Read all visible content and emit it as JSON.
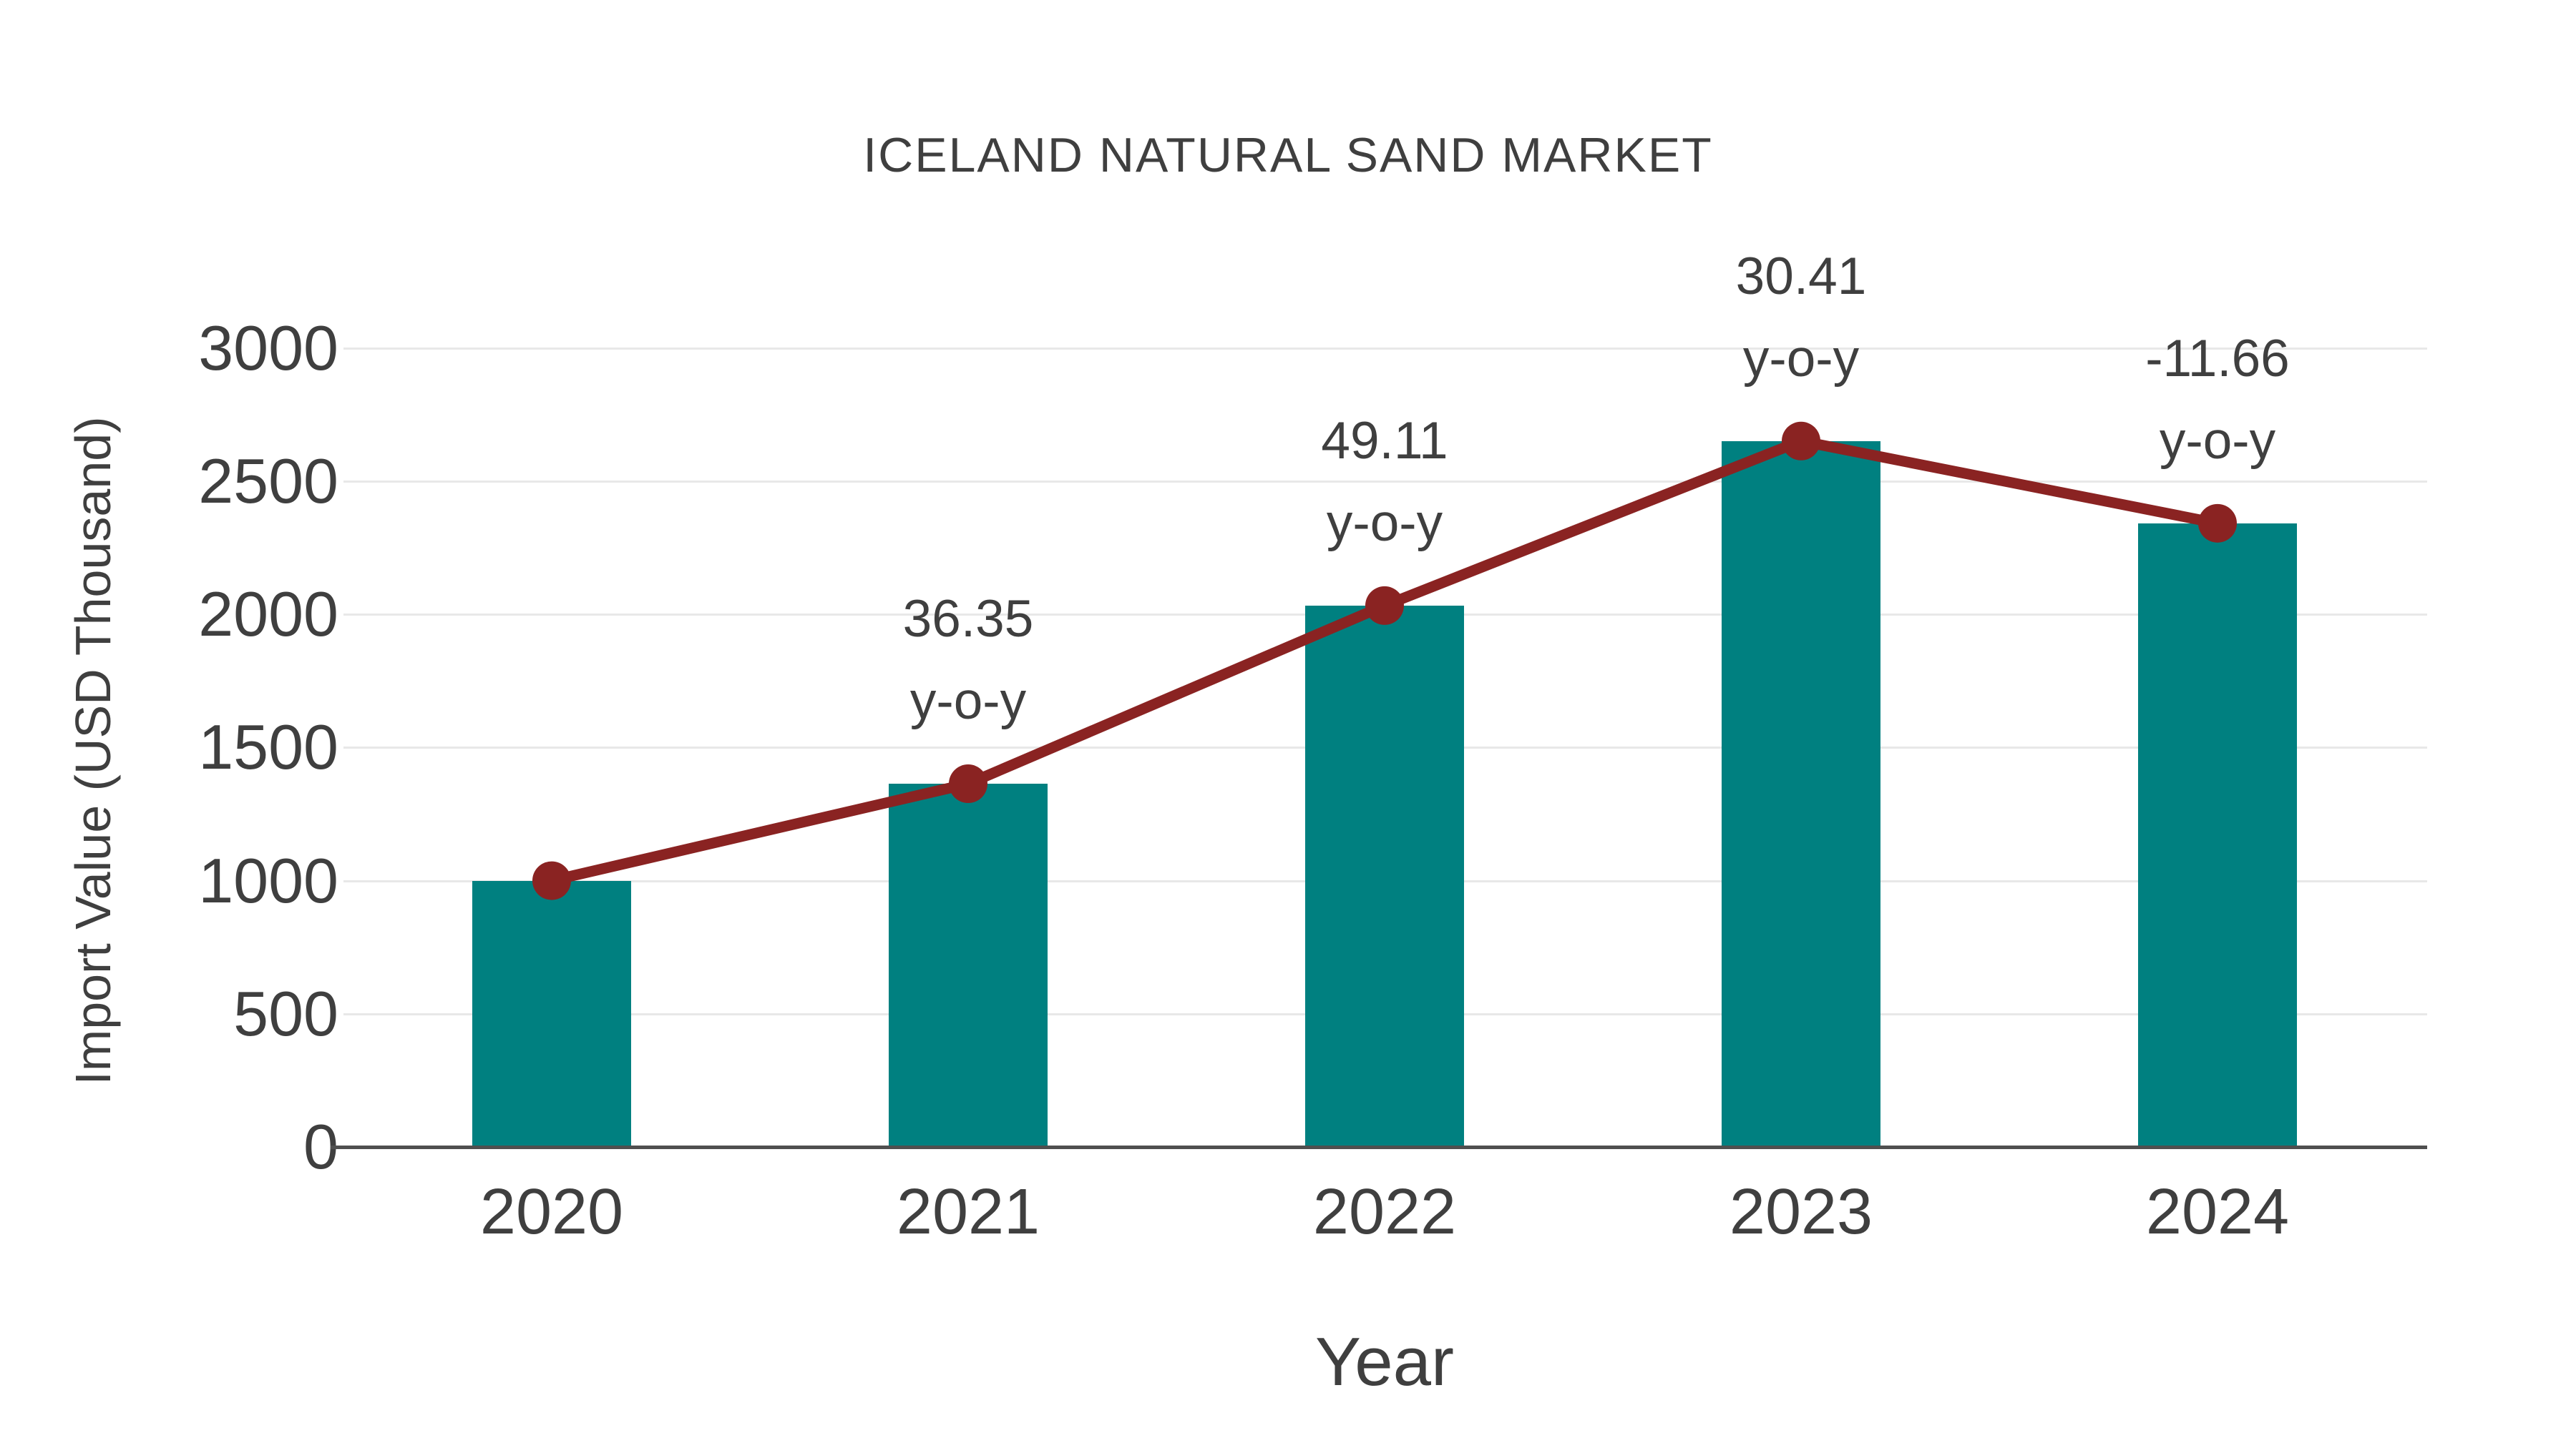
{
  "chart_data": {
    "type": "bar+line",
    "title": "ICELAND NATURAL SAND MARKET",
    "xlabel": "Year",
    "ylabel": "Import Value (USD Thousand)",
    "categories": [
      "2020",
      "2021",
      "2022",
      "2023",
      "2024"
    ],
    "series": [
      {
        "name": "Import Value bars",
        "type": "bar",
        "values": [
          1000,
          1364,
          2033,
          2651,
          2342
        ]
      },
      {
        "name": "Import Value trend line",
        "type": "line",
        "values": [
          1000,
          1364,
          2033,
          2651,
          2342
        ]
      }
    ],
    "annotations": [
      {
        "category": "2021",
        "value": "36.35",
        "suffix": "y-o-y"
      },
      {
        "category": "2022",
        "value": "49.11",
        "suffix": "y-o-y"
      },
      {
        "category": "2023",
        "value": "30.41",
        "suffix": "y-o-y"
      },
      {
        "category": "2024",
        "value": "-11.66",
        "suffix": "y-o-y"
      }
    ],
    "ylim": [
      0,
      3000
    ],
    "yticks": [
      0,
      500,
      1000,
      1500,
      2000,
      2500,
      3000
    ],
    "grid": true,
    "legend": "none",
    "colors": {
      "bar": "#008080",
      "line": "#8a2322",
      "marker": "#8a2322",
      "text": "#3f3f3f",
      "gridline": "#e8e8e8",
      "axis": "#4f4f4f",
      "background": "#ffffff"
    }
  }
}
